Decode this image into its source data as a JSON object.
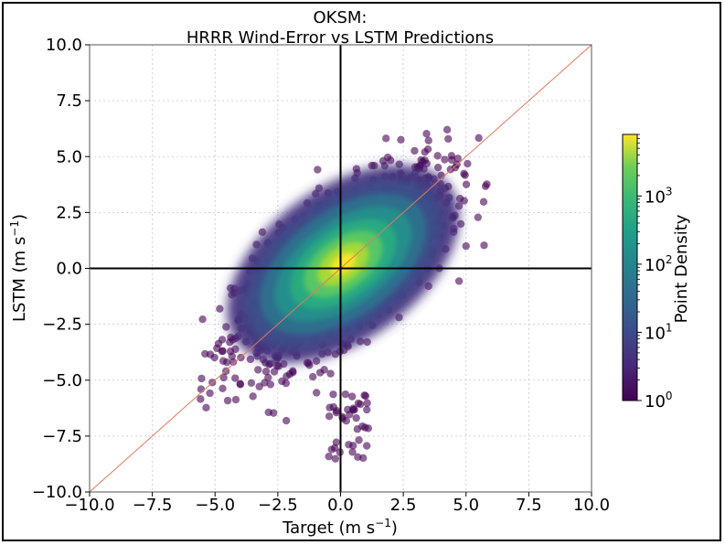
{
  "chart_data": {
    "type": "scatter",
    "title_line1": "OKSM:",
    "title_line2": "HRRR Wind-Error vs LSTM Predictions",
    "xlabel": "Target (m s",
    "xlabel_sup": "−1",
    "xlabel_close": ")",
    "ylabel": "LSTM (m s",
    "ylabel_sup": "−1",
    "ylabel_close": ")",
    "xlim": [
      -10,
      10
    ],
    "ylim": [
      -10,
      10
    ],
    "x_ticks": [
      -10,
      -7.5,
      -5,
      -2.5,
      0,
      2.5,
      5,
      7.5,
      10
    ],
    "x_tick_labels": [
      "−10.0",
      "−7.5",
      "−5.0",
      "−2.5",
      "0.0",
      "2.5",
      "5.0",
      "7.5",
      "10.0"
    ],
    "y_ticks": [
      10,
      7.5,
      5,
      2.5,
      0,
      -2.5,
      -5,
      -7.5,
      -10
    ],
    "y_tick_labels": [
      "10.0",
      "7.5",
      "5.0",
      "2.5",
      "0.0",
      "−2.5",
      "−5.0",
      "−7.5",
      "−10.0"
    ],
    "grid": true,
    "reference_line": "y = x",
    "reference_line_color": "#e07a5f",
    "colorbar": {
      "label": "Point Density",
      "scale": "log",
      "range": [
        1,
        8000
      ],
      "ticks": [
        {
          "base": "10",
          "exp": "0",
          "value": 1
        },
        {
          "base": "10",
          "exp": "1",
          "value": 10
        },
        {
          "base": "10",
          "exp": "2",
          "value": 100
        },
        {
          "base": "10",
          "exp": "3",
          "value": 1000
        }
      ],
      "colormap": "viridis",
      "alpha": 0.6
    },
    "density_cloud": {
      "center": [
        0.0,
        0.0
      ],
      "orientation": "positive correlation (about 0.7 slope)",
      "x_extent": [
        -5.5,
        6.0
      ],
      "y_extent": [
        -8.7,
        7.2
      ]
    }
  }
}
